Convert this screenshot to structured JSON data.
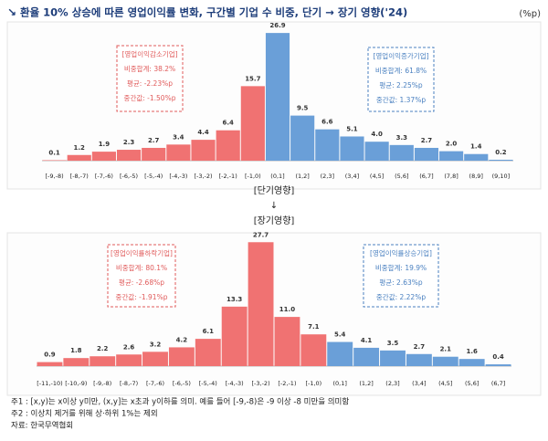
{
  "title": "환율 10% 상승에 따른 영업이익률 변화, 구간별 기업 수 비중, 단기 → 장기 영향('24)",
  "unit": "(%p)",
  "chart_data": [
    {
      "type": "bar",
      "categories": [
        "[-9,-8)",
        "[-8,-7)",
        "[-7,-6)",
        "[-6,-5)",
        "[-5,-4)",
        "[-4,-3)",
        "[-3,-2)",
        "[-2,-1)",
        "[-1,0)",
        "(0,1]",
        "(1,2]",
        "(2,3]",
        "(3,4]",
        "(4,5]",
        "(5,6]",
        "(6,7]",
        "(7,8]",
        "(8,9]",
        "(9,10]"
      ],
      "values": [
        0.1,
        1.2,
        1.9,
        2.3,
        2.7,
        3.4,
        4.4,
        6.4,
        15.7,
        26.9,
        9.5,
        6.6,
        5.1,
        4.0,
        3.3,
        2.7,
        2.0,
        1.4,
        0.2
      ],
      "value_labels": [
        "0.1",
        "1.2",
        "1.9",
        "2.3",
        "2.7",
        "3.4",
        "4.4",
        "6.4",
        "15.7",
        "26.9",
        "9.5",
        "6.6",
        "5.1",
        "4.0",
        "3.3",
        "2.7",
        "2.0",
        "1.4",
        "0.2"
      ],
      "colors": [
        "#f07272",
        "#f07272",
        "#f07272",
        "#f07272",
        "#f07272",
        "#f07272",
        "#f07272",
        "#f07272",
        "#f07272",
        "#6a9fd8",
        "#6a9fd8",
        "#6a9fd8",
        "#6a9fd8",
        "#6a9fd8",
        "#6a9fd8",
        "#6a9fd8",
        "#6a9fd8",
        "#6a9fd8",
        "#6a9fd8"
      ],
      "annotations": [
        {
          "color": "#e05a5a",
          "lines": [
            "[영업이익감소기업]",
            "비중합계: 38.2%",
            "평균: -2.23%p",
            "중간값: -1.50%p"
          ]
        },
        {
          "color": "#4a80c0",
          "lines": [
            "[영업이익증가기업]",
            "비중합계: 61.8%",
            "평균: 2.25%p",
            "중간값: 1.37%p"
          ]
        }
      ]
    },
    {
      "type": "bar",
      "categories": [
        "[-11,-10)",
        "[-10,-9)",
        "[-9,-8)",
        "[-8,-7)",
        "[-7,-6)",
        "[-6,-5)",
        "[-5,-4)",
        "[-4,-3)",
        "[-3,-2)",
        "[-2,-1)",
        "[-1,0)",
        "(0,1]",
        "(1,2]",
        "(2,3]",
        "(3,4]",
        "(4,5]",
        "(5,6]",
        "(6,7]"
      ],
      "values": [
        0.9,
        1.8,
        2.2,
        2.6,
        3.2,
        4.2,
        6.1,
        13.3,
        27.7,
        11.0,
        7.1,
        5.4,
        4.1,
        3.5,
        2.7,
        2.1,
        1.6,
        0.4
      ],
      "value_labels": [
        "0.9",
        "1.8",
        "2.2",
        "2.6",
        "3.2",
        "4.2",
        "6.1",
        "13.3",
        "27.7",
        "11.0",
        "7.1",
        "5.4",
        "4.1",
        "3.5",
        "2.7",
        "2.1",
        "1.6",
        "0.4"
      ],
      "colors": [
        "#f07272",
        "#f07272",
        "#f07272",
        "#f07272",
        "#f07272",
        "#f07272",
        "#f07272",
        "#f07272",
        "#f07272",
        "#f07272",
        "#f07272",
        "#6a9fd8",
        "#6a9fd8",
        "#6a9fd8",
        "#6a9fd8",
        "#6a9fd8",
        "#6a9fd8",
        "#6a9fd8"
      ],
      "annotations": [
        {
          "color": "#e05a5a",
          "lines": [
            "[영업이익률하락기업]",
            "비중합계: 80.1%",
            "평균: -2.68%p",
            "중간값: -1.91%p"
          ]
        },
        {
          "color": "#4a80c0",
          "lines": [
            "[영업이익률상승기업]",
            "비중합계: 19.9%",
            "평균: 2.63%p",
            "중간값: 2.22%p"
          ]
        }
      ]
    }
  ],
  "flow": {
    "short_label": "[단기영향]",
    "arrow": "↓",
    "long_label": "[장기영향]"
  },
  "notes": [
    "주1 : [x,y)는 x이상 y미만, (x,y]는 x초과 y이하를 의미. 예를 들어 [-9,-8)은 -9 이상 -8 미만을 의미함",
    "주2 : 이상치 제거를 위해 상·하위 1%는 제외",
    "자료: 한국무역협회"
  ]
}
